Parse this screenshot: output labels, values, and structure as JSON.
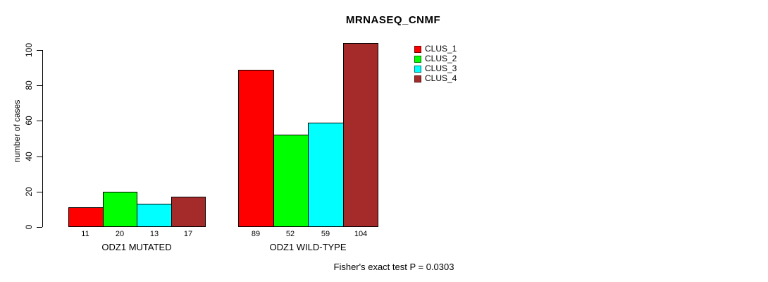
{
  "chart_data": {
    "type": "bar",
    "title": "MRNASEQ_CNMF",
    "ylabel": "number of cases",
    "xlabel": "",
    "categories": [
      "ODZ1 MUTATED",
      "ODZ1 WILD-TYPE"
    ],
    "series": [
      {
        "name": "CLUS_1",
        "color": "#FF0000",
        "values": [
          11,
          89
        ]
      },
      {
        "name": "CLUS_2",
        "color": "#00FF00",
        "values": [
          20,
          52
        ]
      },
      {
        "name": "CLUS_3",
        "color": "#00FFFF",
        "values": [
          13,
          59
        ]
      },
      {
        "name": "CLUS_4",
        "color": "#A52A2A",
        "values": [
          17,
          104
        ]
      }
    ],
    "yticks": [
      0,
      20,
      40,
      60,
      80,
      100
    ],
    "ylim": [
      0,
      104
    ],
    "bar_value_labels_shown": true,
    "grid": false,
    "legend_position": "top-right",
    "annotation": "Fisher's exact test P = 0.0303",
    "colors": {
      "bar_border": "#000000",
      "axis": "#000000",
      "background": "#FFFFFF"
    }
  }
}
